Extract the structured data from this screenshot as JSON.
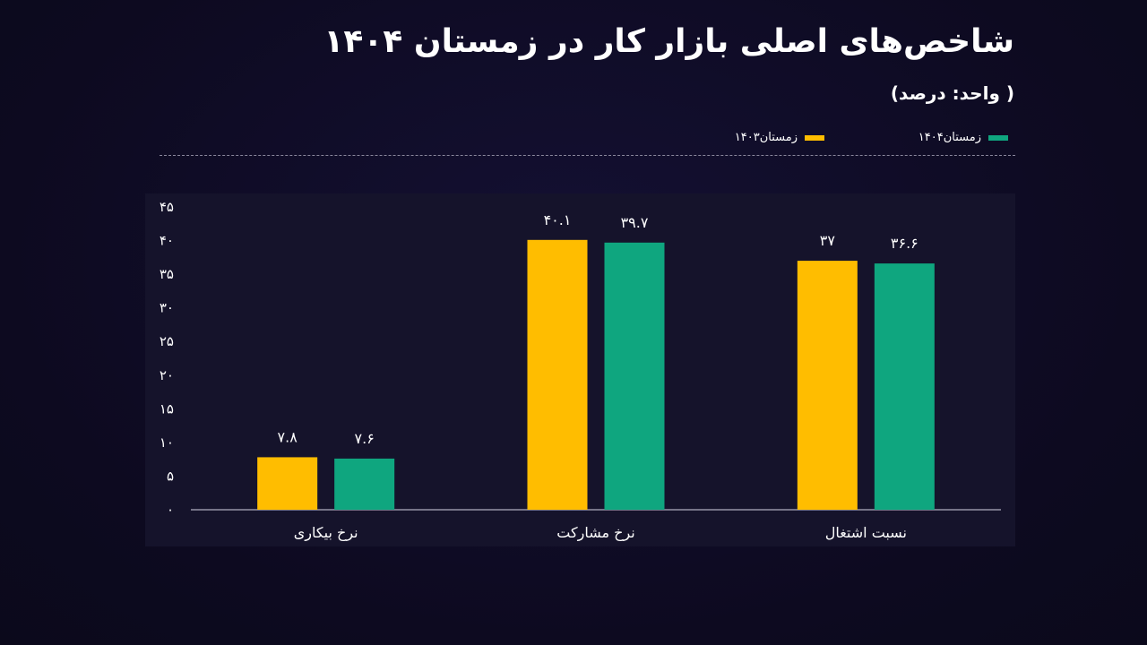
{
  "header": {
    "title": "شاخص‌های اصلی بازار کار در زمستان ۱۴۰۴",
    "subtitle": "( واحد: درصد)"
  },
  "legend": {
    "items": [
      {
        "label": "زمستان۱۴۰۴",
        "color": "#0fa67f"
      },
      {
        "label": "زمستان۱۴۰۳",
        "color": "#ffbd00"
      }
    ]
  },
  "chart_data": {
    "type": "bar",
    "categories": [
      "نرخ بیکاری",
      "نرخ مشارکت",
      "نسبت اشتغال"
    ],
    "series": [
      {
        "name": "زمستان۱۴۰۳",
        "color": "#ffbd00",
        "values": [
          7.8,
          40.1,
          37
        ],
        "labels": [
          "۷.۸",
          "۴۰.۱",
          "۳۷"
        ]
      },
      {
        "name": "زمستان۱۴۰۴",
        "color": "#0fa67f",
        "values": [
          7.6,
          39.7,
          36.6
        ],
        "labels": [
          "۷.۶",
          "۳۹.۷",
          "۳۶.۶"
        ]
      }
    ],
    "ylim": [
      0,
      45
    ],
    "yticks": [
      0,
      5,
      10,
      15,
      20,
      25,
      30,
      35,
      40,
      45
    ],
    "ytick_labels": [
      "۰",
      "۵",
      "۱۰",
      "۱۵",
      "۲۰",
      "۲۵",
      "۳۰",
      "۳۵",
      "۴۰",
      "۴۵"
    ],
    "grid": false,
    "legend_position": "top-right"
  }
}
